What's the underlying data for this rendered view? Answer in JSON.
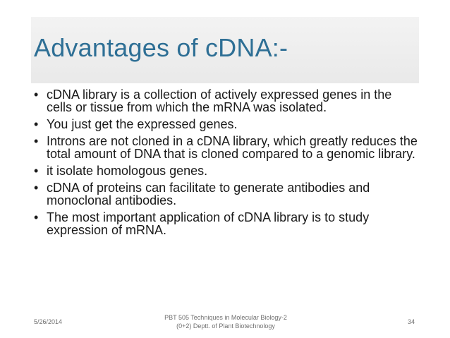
{
  "slide": {
    "title": "Advantages of cDNA:-",
    "bullet_marker": "•",
    "bullets": [
      " cDNA library is a collection of actively expressed genes in the cells or tissue from which the mRNA was isolated.",
      "You just get the expressed genes.",
      " Introns are not cloned in a cDNA library, which greatly reduces the total amount of DNA that is cloned compared to a genomic library.",
      "it isolate homologous genes.",
      "cDNA of proteins can facilitate to generate antibodies and monoclonal antibodies.",
      "The most important application of cDNA library is to study expression of mRNA."
    ]
  },
  "footer": {
    "date": "5/26/2014",
    "center_line1": "PBT 505 Techniques in Molecular Biology-2",
    "center_line2": "(0+2) Deptt. of Plant Biotechnology",
    "page_number": "34"
  },
  "colors": {
    "title": "#2e6f95",
    "body_text": "#1a1a1a",
    "title_band": "#ececec",
    "footer_text": "#6f6f6f"
  }
}
